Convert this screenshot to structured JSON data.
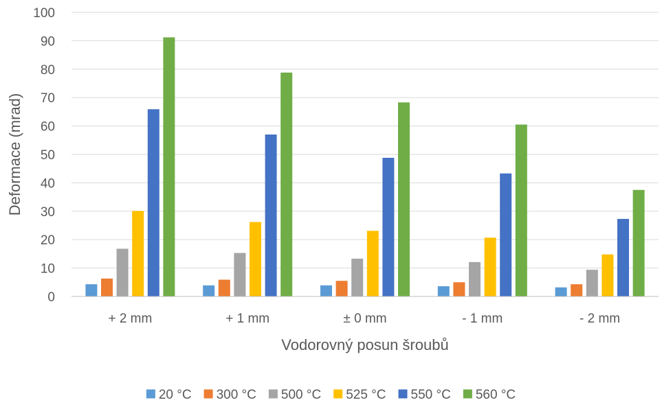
{
  "chart_data": {
    "type": "bar",
    "title": "",
    "xlabel": "Vodorovný posun šroubů",
    "ylabel": "Deformace (mrad)",
    "ylim": [
      0,
      100
    ],
    "yticks": [
      0,
      10,
      20,
      30,
      40,
      50,
      60,
      70,
      80,
      90,
      100
    ],
    "grid": true,
    "legend_position": "bottom",
    "categories": [
      "+ 2 mm",
      "+ 1 mm",
      "± 0 mm",
      "- 1 mm",
      "- 2 mm"
    ],
    "series": [
      {
        "name": "20 °C",
        "color": "#5B9BD5",
        "values": [
          4.3,
          3.9,
          3.9,
          3.6,
          3.2
        ]
      },
      {
        "name": "300 °C",
        "color": "#ED7D31",
        "values": [
          6.3,
          5.9,
          5.5,
          5.0,
          4.3
        ]
      },
      {
        "name": "500 °C",
        "color": "#A5A5A5",
        "values": [
          16.8,
          15.3,
          13.3,
          12.1,
          9.4
        ]
      },
      {
        "name": "525 °C",
        "color": "#FFC000",
        "values": [
          30.1,
          26.2,
          23.1,
          20.7,
          14.8
        ]
      },
      {
        "name": "550 °C",
        "color": "#4472C4",
        "values": [
          65.9,
          57.0,
          48.8,
          43.3,
          27.3
        ]
      },
      {
        "name": "560 °C",
        "color": "#70AD47",
        "values": [
          91.2,
          78.8,
          68.3,
          60.5,
          37.5
        ]
      }
    ]
  }
}
